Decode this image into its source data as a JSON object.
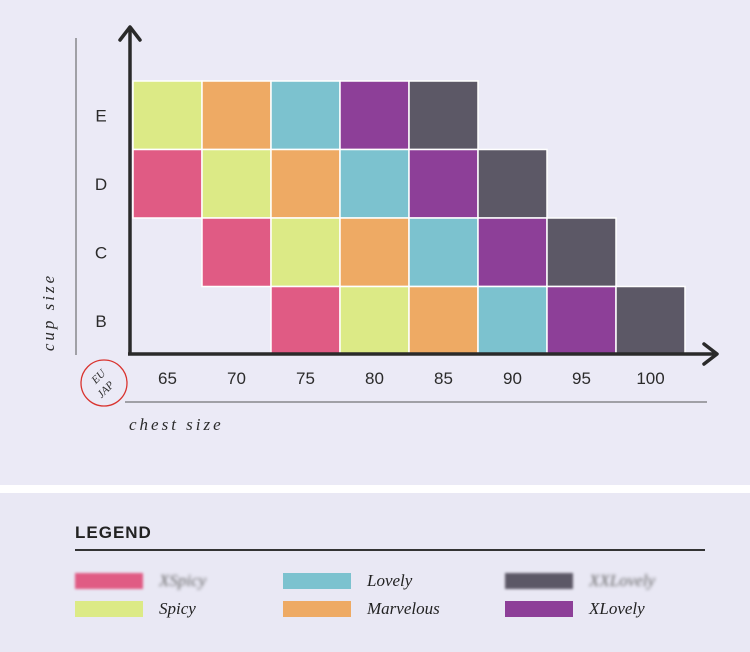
{
  "chart_data": {
    "type": "heatmap",
    "title": "",
    "xlabel": "chest size",
    "ylabel": "cup size",
    "x_categories": [
      "65",
      "70",
      "75",
      "80",
      "85",
      "90",
      "95",
      "100"
    ],
    "y_categories": [
      "B",
      "C",
      "D",
      "E"
    ],
    "axis_badge": [
      "EU",
      "JAP"
    ],
    "cells": [
      {
        "cup": "E",
        "chest": "65",
        "size": "Spicy"
      },
      {
        "cup": "E",
        "chest": "70",
        "size": "Marvelous"
      },
      {
        "cup": "E",
        "chest": "75",
        "size": "Lovely"
      },
      {
        "cup": "E",
        "chest": "80",
        "size": "XLovely"
      },
      {
        "cup": "E",
        "chest": "85",
        "size": "XXLovely"
      },
      {
        "cup": "D",
        "chest": "65",
        "size": "XSpicy"
      },
      {
        "cup": "D",
        "chest": "70",
        "size": "Spicy"
      },
      {
        "cup": "D",
        "chest": "75",
        "size": "Marvelous"
      },
      {
        "cup": "D",
        "chest": "80",
        "size": "Lovely"
      },
      {
        "cup": "D",
        "chest": "85",
        "size": "XLovely"
      },
      {
        "cup": "D",
        "chest": "90",
        "size": "XXLovely"
      },
      {
        "cup": "C",
        "chest": "70",
        "size": "XSpicy"
      },
      {
        "cup": "C",
        "chest": "75",
        "size": "Spicy"
      },
      {
        "cup": "C",
        "chest": "80",
        "size": "Marvelous"
      },
      {
        "cup": "C",
        "chest": "85",
        "size": "Lovely"
      },
      {
        "cup": "C",
        "chest": "90",
        "size": "XLovely"
      },
      {
        "cup": "C",
        "chest": "95",
        "size": "XXLovely"
      },
      {
        "cup": "B",
        "chest": "75",
        "size": "XSpicy"
      },
      {
        "cup": "B",
        "chest": "80",
        "size": "Spicy"
      },
      {
        "cup": "B",
        "chest": "85",
        "size": "Marvelous"
      },
      {
        "cup": "B",
        "chest": "90",
        "size": "Lovely"
      },
      {
        "cup": "B",
        "chest": "95",
        "size": "XLovely"
      },
      {
        "cup": "B",
        "chest": "100",
        "size": "XXLovely"
      }
    ],
    "colors": {
      "XSpicy": "#e05b84",
      "Spicy": "#dcea86",
      "Lovely": "#7cc2cf",
      "Marvelous": "#eeaa64",
      "XXLovely": "#5c5866",
      "XLovely": "#8d3f98"
    }
  },
  "legend": {
    "title": "LEGEND",
    "items": [
      {
        "key": "XSpicy",
        "label": "XSpicy",
        "blurred": true
      },
      {
        "key": "Spicy",
        "label": "Spicy",
        "blurred": false
      },
      {
        "key": "Lovely",
        "label": "Lovely",
        "blurred": false
      },
      {
        "key": "Marvelous",
        "label": "Marvelous",
        "blurred": false
      },
      {
        "key": "XXLovely",
        "label": "XXLovely",
        "blurred": true
      },
      {
        "key": "XLovely",
        "label": "XLovely",
        "blurred": false
      }
    ]
  }
}
